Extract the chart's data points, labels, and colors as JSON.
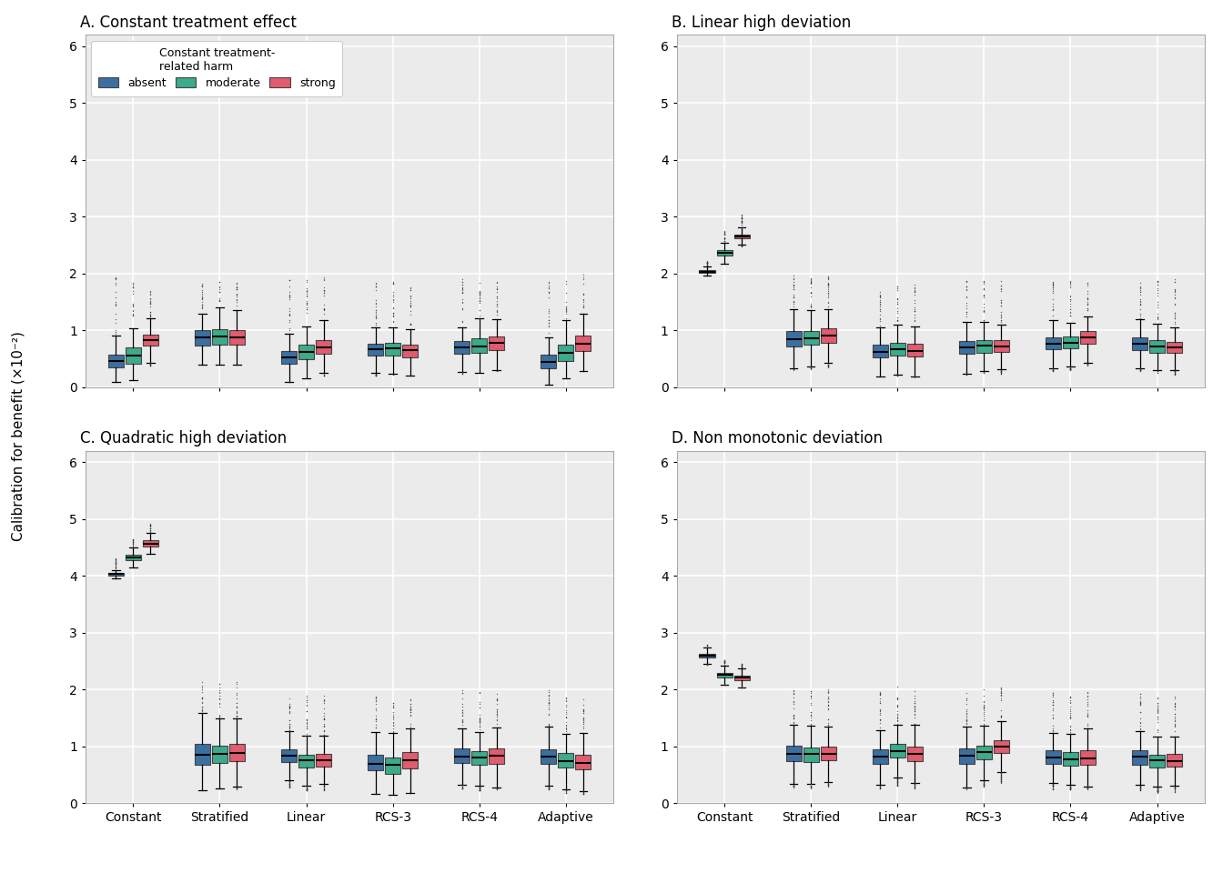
{
  "panels": [
    "A. Constant treatment effect",
    "B. Linear high deviation",
    "C. Quadratic high deviation",
    "D. Non monotonic deviation"
  ],
  "categories": [
    "Constant",
    "Stratified",
    "Linear",
    "RCS-3",
    "RCS-4",
    "Adaptive"
  ],
  "colors": {
    "absent": "#3B6FA0",
    "moderate": "#3DAA8A",
    "strong": "#E05C6E"
  },
  "legend_label": "Constant treatment-\nrelated harm",
  "legend_items": [
    "absent",
    "moderate",
    "strong"
  ],
  "ylabel": "Calibration for benefit (×10⁻²)",
  "ylim": [
    0,
    6.2
  ],
  "yticks": [
    0,
    1,
    2,
    3,
    4,
    5,
    6
  ],
  "background_color": "#FFFFFF",
  "panel_bg": "#EBEBEB",
  "grid_color": "#FFFFFF",
  "panels_data": {
    "A": {
      "Constant": {
        "absent": {
          "q1": 0.32,
          "med": 0.43,
          "q3": 0.6,
          "wlo": 0.1,
          "whi": 0.88,
          "out_max": 1.95
        },
        "moderate": {
          "q1": 0.38,
          "med": 0.5,
          "q3": 0.72,
          "wlo": 0.12,
          "whi": 0.95,
          "out_max": 1.9
        },
        "strong": {
          "q1": 0.7,
          "med": 0.83,
          "q3": 0.95,
          "wlo": 0.38,
          "whi": 1.15,
          "out_max": 1.85
        }
      },
      "Stratified": {
        "absent": {
          "q1": 0.7,
          "med": 0.82,
          "q3": 1.02,
          "wlo": 0.38,
          "whi": 1.3,
          "out_max": 1.9
        },
        "moderate": {
          "q1": 0.72,
          "med": 0.85,
          "q3": 1.05,
          "wlo": 0.4,
          "whi": 1.3,
          "out_max": 1.88
        },
        "strong": {
          "q1": 0.72,
          "med": 0.85,
          "q3": 1.02,
          "wlo": 0.38,
          "whi": 1.28,
          "out_max": 1.9
        }
      },
      "Linear": {
        "absent": {
          "q1": 0.38,
          "med": 0.5,
          "q3": 0.65,
          "wlo": 0.08,
          "whi": 0.95,
          "out_max": 1.92
        },
        "moderate": {
          "q1": 0.45,
          "med": 0.58,
          "q3": 0.78,
          "wlo": 0.15,
          "whi": 1.05,
          "out_max": 1.92
        },
        "strong": {
          "q1": 0.55,
          "med": 0.67,
          "q3": 0.85,
          "wlo": 0.2,
          "whi": 1.1,
          "out_max": 1.95
        }
      },
      "RCS-3": {
        "absent": {
          "q1": 0.52,
          "med": 0.62,
          "q3": 0.78,
          "wlo": 0.2,
          "whi": 1.05,
          "out_max": 1.85
        },
        "moderate": {
          "q1": 0.52,
          "med": 0.63,
          "q3": 0.8,
          "wlo": 0.22,
          "whi": 1.05,
          "out_max": 1.85
        },
        "strong": {
          "q1": 0.5,
          "med": 0.62,
          "q3": 0.78,
          "wlo": 0.2,
          "whi": 1.02,
          "out_max": 1.82
        }
      },
      "RCS-4": {
        "absent": {
          "q1": 0.55,
          "med": 0.65,
          "q3": 0.82,
          "wlo": 0.22,
          "whi": 1.05,
          "out_max": 1.9
        },
        "moderate": {
          "q1": 0.58,
          "med": 0.7,
          "q3": 0.88,
          "wlo": 0.25,
          "whi": 1.1,
          "out_max": 1.9
        },
        "strong": {
          "q1": 0.62,
          "med": 0.75,
          "q3": 0.92,
          "wlo": 0.28,
          "whi": 1.12,
          "out_max": 1.92
        }
      },
      "Adaptive": {
        "absent": {
          "q1": 0.28,
          "med": 0.4,
          "q3": 0.58,
          "wlo": 0.05,
          "whi": 0.88,
          "out_max": 1.88
        },
        "moderate": {
          "q1": 0.42,
          "med": 0.58,
          "q3": 0.78,
          "wlo": 0.15,
          "whi": 1.05,
          "out_max": 1.88
        },
        "strong": {
          "q1": 0.6,
          "med": 0.75,
          "q3": 0.92,
          "wlo": 0.28,
          "whi": 1.15,
          "out_max": 2.0
        }
      }
    },
    "B": {
      "Constant": {
        "absent": {
          "q1": 2.01,
          "med": 2.04,
          "q3": 2.07,
          "wlo": 1.96,
          "whi": 2.12,
          "out_max": 2.22
        },
        "moderate": {
          "q1": 2.3,
          "med": 2.36,
          "q3": 2.42,
          "wlo": 2.18,
          "whi": 2.55,
          "out_max": 2.75
        },
        "strong": {
          "q1": 2.6,
          "med": 2.65,
          "q3": 2.7,
          "wlo": 2.48,
          "whi": 2.82,
          "out_max": 3.05
        }
      },
      "Stratified": {
        "absent": {
          "q1": 0.68,
          "med": 0.83,
          "q3": 1.02,
          "wlo": 0.3,
          "whi": 1.38,
          "out_max": 2.0
        },
        "moderate": {
          "q1": 0.7,
          "med": 0.85,
          "q3": 1.03,
          "wlo": 0.32,
          "whi": 1.36,
          "out_max": 2.0
        },
        "strong": {
          "q1": 0.75,
          "med": 0.9,
          "q3": 1.06,
          "wlo": 0.35,
          "whi": 1.38,
          "out_max": 2.0
        }
      },
      "Linear": {
        "absent": {
          "q1": 0.48,
          "med": 0.6,
          "q3": 0.76,
          "wlo": 0.18,
          "whi": 1.05,
          "out_max": 1.82
        },
        "moderate": {
          "q1": 0.52,
          "med": 0.65,
          "q3": 0.8,
          "wlo": 0.2,
          "whi": 1.08,
          "out_max": 1.85
        },
        "strong": {
          "q1": 0.5,
          "med": 0.63,
          "q3": 0.78,
          "wlo": 0.18,
          "whi": 1.05,
          "out_max": 1.82
        }
      },
      "RCS-3": {
        "absent": {
          "q1": 0.55,
          "med": 0.68,
          "q3": 0.83,
          "wlo": 0.22,
          "whi": 1.1,
          "out_max": 1.88
        },
        "moderate": {
          "q1": 0.58,
          "med": 0.7,
          "q3": 0.85,
          "wlo": 0.24,
          "whi": 1.12,
          "out_max": 1.9
        },
        "strong": {
          "q1": 0.58,
          "med": 0.7,
          "q3": 0.85,
          "wlo": 0.24,
          "whi": 1.1,
          "out_max": 1.9
        }
      },
      "RCS-4": {
        "absent": {
          "q1": 0.62,
          "med": 0.75,
          "q3": 0.9,
          "wlo": 0.28,
          "whi": 1.12,
          "out_max": 1.9
        },
        "moderate": {
          "q1": 0.65,
          "med": 0.78,
          "q3": 0.92,
          "wlo": 0.3,
          "whi": 1.14,
          "out_max": 1.9
        },
        "strong": {
          "q1": 0.74,
          "med": 0.87,
          "q3": 1.02,
          "wlo": 0.38,
          "whi": 1.18,
          "out_max": 1.95
        }
      },
      "Adaptive": {
        "absent": {
          "q1": 0.62,
          "med": 0.75,
          "q3": 0.9,
          "wlo": 0.28,
          "whi": 1.12,
          "out_max": 1.9
        },
        "moderate": {
          "q1": 0.58,
          "med": 0.7,
          "q3": 0.85,
          "wlo": 0.24,
          "whi": 1.08,
          "out_max": 1.88
        },
        "strong": {
          "q1": 0.56,
          "med": 0.68,
          "q3": 0.82,
          "wlo": 0.22,
          "whi": 1.05,
          "out_max": 1.92
        }
      }
    },
    "C": {
      "Constant": {
        "absent": {
          "q1": 4.0,
          "med": 4.03,
          "q3": 4.06,
          "wlo": 3.95,
          "whi": 4.1,
          "out_max": 4.32
        },
        "moderate": {
          "q1": 4.26,
          "med": 4.32,
          "q3": 4.38,
          "wlo": 4.15,
          "whi": 4.48,
          "out_max": 4.65
        },
        "strong": {
          "q1": 4.5,
          "med": 4.57,
          "q3": 4.63,
          "wlo": 4.38,
          "whi": 4.72,
          "out_max": 4.92
        }
      },
      "Stratified": {
        "absent": {
          "q1": 0.62,
          "med": 0.83,
          "q3": 1.08,
          "wlo": 0.22,
          "whi": 1.5,
          "out_max": 2.15
        },
        "moderate": {
          "q1": 0.65,
          "med": 0.85,
          "q3": 1.06,
          "wlo": 0.25,
          "whi": 1.45,
          "out_max": 2.12
        },
        "strong": {
          "q1": 0.68,
          "med": 0.88,
          "q3": 1.08,
          "wlo": 0.25,
          "whi": 1.45,
          "out_max": 2.15
        }
      },
      "Linear": {
        "absent": {
          "q1": 0.68,
          "med": 0.82,
          "q3": 0.96,
          "wlo": 0.28,
          "whi": 1.28,
          "out_max": 1.95
        },
        "moderate": {
          "q1": 0.6,
          "med": 0.74,
          "q3": 0.88,
          "wlo": 0.22,
          "whi": 1.2,
          "out_max": 1.9
        },
        "strong": {
          "q1": 0.6,
          "med": 0.74,
          "q3": 0.88,
          "wlo": 0.22,
          "whi": 1.2,
          "out_max": 1.9
        }
      },
      "RCS-3": {
        "absent": {
          "q1": 0.52,
          "med": 0.7,
          "q3": 0.88,
          "wlo": 0.16,
          "whi": 1.18,
          "out_max": 1.9
        },
        "moderate": {
          "q1": 0.48,
          "med": 0.65,
          "q3": 0.84,
          "wlo": 0.14,
          "whi": 1.12,
          "out_max": 1.85
        },
        "strong": {
          "q1": 0.56,
          "med": 0.74,
          "q3": 0.92,
          "wlo": 0.18,
          "whi": 1.22,
          "out_max": 1.92
        }
      },
      "RCS-4": {
        "absent": {
          "q1": 0.65,
          "med": 0.8,
          "q3": 0.98,
          "wlo": 0.25,
          "whi": 1.28,
          "out_max": 2.05
        },
        "moderate": {
          "q1": 0.62,
          "med": 0.77,
          "q3": 0.94,
          "wlo": 0.22,
          "whi": 1.25,
          "out_max": 2.02
        },
        "strong": {
          "q1": 0.64,
          "med": 0.82,
          "q3": 0.99,
          "wlo": 0.24,
          "whi": 1.28,
          "out_max": 2.05
        }
      },
      "Adaptive": {
        "absent": {
          "q1": 0.65,
          "med": 0.8,
          "q3": 0.98,
          "wlo": 0.24,
          "whi": 1.28,
          "out_max": 2.0
        },
        "moderate": {
          "q1": 0.58,
          "med": 0.73,
          "q3": 0.9,
          "wlo": 0.18,
          "whi": 1.18,
          "out_max": 1.92
        },
        "strong": {
          "q1": 0.56,
          "med": 0.72,
          "q3": 0.88,
          "wlo": 0.16,
          "whi": 1.18,
          "out_max": 1.9
        }
      }
    },
    "D": {
      "Constant": {
        "absent": {
          "q1": 2.55,
          "med": 2.6,
          "q3": 2.64,
          "wlo": 2.44,
          "whi": 2.7,
          "out_max": 2.8
        },
        "moderate": {
          "q1": 2.2,
          "med": 2.25,
          "q3": 2.3,
          "wlo": 2.08,
          "whi": 2.4,
          "out_max": 2.52
        },
        "strong": {
          "q1": 2.15,
          "med": 2.2,
          "q3": 2.26,
          "wlo": 2.03,
          "whi": 2.36,
          "out_max": 2.46
        }
      },
      "Stratified": {
        "absent": {
          "q1": 0.7,
          "med": 0.85,
          "q3": 1.02,
          "wlo": 0.28,
          "whi": 1.35,
          "out_max": 2.0
        },
        "moderate": {
          "q1": 0.68,
          "med": 0.83,
          "q3": 1.0,
          "wlo": 0.26,
          "whi": 1.32,
          "out_max": 1.98
        },
        "strong": {
          "q1": 0.7,
          "med": 0.85,
          "q3": 1.02,
          "wlo": 0.28,
          "whi": 1.35,
          "out_max": 2.0
        }
      },
      "Linear": {
        "absent": {
          "q1": 0.65,
          "med": 0.8,
          "q3": 0.96,
          "wlo": 0.24,
          "whi": 1.28,
          "out_max": 2.0
        },
        "moderate": {
          "q1": 0.75,
          "med": 0.9,
          "q3": 1.06,
          "wlo": 0.3,
          "whi": 1.36,
          "out_max": 2.05
        },
        "strong": {
          "q1": 0.7,
          "med": 0.85,
          "q3": 1.02,
          "wlo": 0.26,
          "whi": 1.32,
          "out_max": 2.0
        }
      },
      "RCS-3": {
        "absent": {
          "q1": 0.65,
          "med": 0.82,
          "q3": 0.99,
          "wlo": 0.24,
          "whi": 1.28,
          "out_max": 2.0
        },
        "moderate": {
          "q1": 0.72,
          "med": 0.87,
          "q3": 1.03,
          "wlo": 0.28,
          "whi": 1.32,
          "out_max": 2.0
        },
        "strong": {
          "q1": 0.85,
          "med": 0.99,
          "q3": 1.12,
          "wlo": 0.36,
          "whi": 1.42,
          "out_max": 2.05
        }
      },
      "RCS-4": {
        "absent": {
          "q1": 0.65,
          "med": 0.8,
          "q3": 0.95,
          "wlo": 0.24,
          "whi": 1.25,
          "out_max": 1.95
        },
        "moderate": {
          "q1": 0.62,
          "med": 0.77,
          "q3": 0.92,
          "wlo": 0.22,
          "whi": 1.22,
          "out_max": 1.92
        },
        "strong": {
          "q1": 0.64,
          "med": 0.8,
          "q3": 0.96,
          "wlo": 0.24,
          "whi": 1.26,
          "out_max": 1.95
        }
      },
      "Adaptive": {
        "absent": {
          "q1": 0.64,
          "med": 0.79,
          "q3": 0.94,
          "wlo": 0.22,
          "whi": 1.22,
          "out_max": 1.92
        },
        "moderate": {
          "q1": 0.58,
          "med": 0.72,
          "q3": 0.87,
          "wlo": 0.18,
          "whi": 1.17,
          "out_max": 1.88
        },
        "strong": {
          "q1": 0.6,
          "med": 0.75,
          "q3": 0.9,
          "wlo": 0.2,
          "whi": 1.18,
          "out_max": 1.88
        }
      }
    }
  }
}
